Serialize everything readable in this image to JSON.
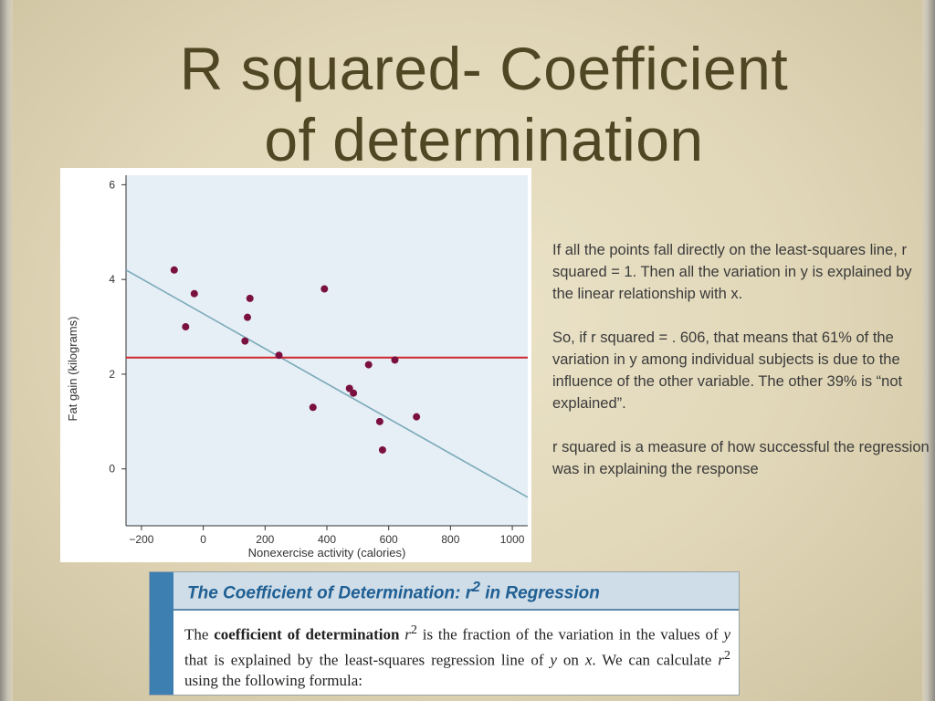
{
  "slide": {
    "title_line1": "R squared- Coefficient",
    "title_line2": "of determination",
    "paragraphs": [
      "If all the points fall directly on the least-squares line, r squared = 1.  Then all the variation in y is explained by the linear relationship with x.",
      "So, if r squared = . 606, that means that 61% of the variation in y among individual subjects is due to the influence of the other variable.  The other 39% is “not explained”.",
      "r squared is a measure of how successful the regression was in explaining the response"
    ],
    "colors": {
      "title": "#4f4624",
      "plot_bg": "#e6eef6",
      "point": "#7a1040",
      "fit_line": "#7aaab8",
      "mean_line": "#d0262e",
      "box_accent": "#3d7fb0"
    }
  },
  "definition_box": {
    "heading_main": "The Coefficient of Determination: r",
    "heading_sup": "2",
    "heading_tail": " in Regression",
    "t1": "The ",
    "bold_term": "coefficient of determination",
    "t2": " r",
    "sup": "2",
    "t3": " is the fraction of the variation in the values of ",
    "y1": "y",
    "t4": " that is explained by the least-squares regression line of ",
    "y2": "y",
    "t5": " on ",
    "x1": "x",
    "t6": ". We can calculate ",
    "r2": "r",
    "sup2": "2",
    "t7": " using the following formula:"
  },
  "chart_data": {
    "type": "scatter",
    "xlabel": "Nonexercise activity (calories)",
    "ylabel": "Fat gain (kilograms)",
    "xlim": [
      -250,
      1050
    ],
    "ylim": [
      -1.2,
      6.2
    ],
    "xticks": [
      -200,
      0,
      200,
      400,
      600,
      800,
      1000
    ],
    "xtick_labels": [
      "−200",
      "0",
      "200",
      "400",
      "600",
      "800",
      "1000"
    ],
    "yticks": [
      0,
      2,
      4,
      6
    ],
    "ytick_labels": [
      "0",
      "2",
      "4",
      "6"
    ],
    "points": [
      [
        -94,
        4.2
      ],
      [
        -57,
        3.0
      ],
      [
        -29,
        3.7
      ],
      [
        135,
        2.7
      ],
      [
        143,
        3.2
      ],
      [
        151,
        3.6
      ],
      [
        245,
        2.4
      ],
      [
        355,
        1.3
      ],
      [
        392,
        3.8
      ],
      [
        473,
        1.7
      ],
      [
        486,
        1.6
      ],
      [
        535,
        2.2
      ],
      [
        571,
        1.0
      ],
      [
        580,
        0.4
      ],
      [
        620,
        2.3
      ],
      [
        690,
        1.1
      ]
    ],
    "fit_line": [
      [
        -250,
        4.2
      ],
      [
        1050,
        -0.6
      ]
    ],
    "mean_y": 2.35,
    "grid": false
  }
}
